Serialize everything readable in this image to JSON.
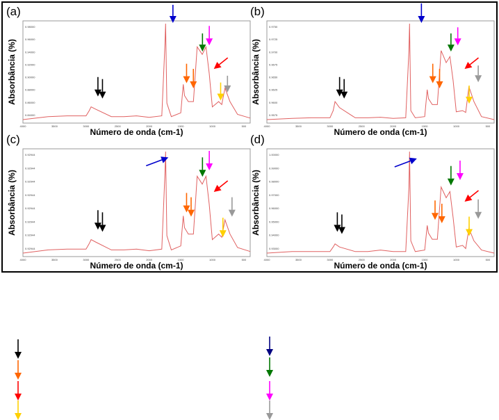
{
  "figure": {
    "axis_label_x": "Número de onda (cm-1)",
    "axis_label_y": "Absorbância (%)",
    "x_ticks": [
      "4000",
      "3500",
      "3000",
      "2500",
      "2000",
      "1500",
      "1000",
      "500"
    ],
    "panels": [
      {
        "label": "(a)",
        "y_ticks": [
          "0.98000",
          "0.96000",
          "0.94000",
          "0.92000",
          "0.90000",
          "0.88000",
          "0.86000",
          "0.84000"
        ]
      },
      {
        "label": "(b)",
        "y_ticks": [
          "0.9750",
          "0.9725",
          "0.9700",
          "0.9675",
          "0.9650",
          "0.9625",
          "0.9600",
          "0.9575"
        ]
      },
      {
        "label": "(c)",
        "y_ticks": [
          "0.92944",
          "0.92944",
          "0.92944",
          "0.92944",
          "0.92944",
          "0.92944",
          "0.92944",
          "0.92944"
        ]
      },
      {
        "label": "(d)",
        "y_ticks": [
          "1.00000",
          "0.99000",
          "0.98000",
          "0.97000",
          "0.96000",
          "0.95000",
          "0.94000",
          "0.93000"
        ]
      }
    ]
  },
  "colors": {
    "spectrum": "#e06060",
    "black": "#000000",
    "orange": "#ff6600",
    "red": "#ff0000",
    "yellow": "#ffd000",
    "blue": "#0000cc",
    "navy": "#000080",
    "green": "#007700",
    "magenta": "#ff00ff",
    "gray": "#999999"
  },
  "chart_data": [
    {
      "type": "line",
      "xlabel": "Número de onda (cm-1)",
      "ylabel": "Absorbância (%)",
      "xlim": [
        4000,
        400
      ],
      "grid": false,
      "x": [
        4000,
        3600,
        3300,
        3000,
        2950,
        2920,
        2850,
        2600,
        2400,
        2200,
        2000,
        1800,
        1750,
        1740,
        1720,
        1650,
        1500,
        1460,
        1440,
        1380,
        1300,
        1240,
        1160,
        1100,
        1050,
        1000,
        900,
        850,
        800,
        720,
        600,
        400
      ],
      "y": [
        0.848,
        0.852,
        0.853,
        0.853,
        0.86,
        0.865,
        0.862,
        0.852,
        0.852,
        0.853,
        0.851,
        0.853,
        0.95,
        0.976,
        0.87,
        0.852,
        0.857,
        0.895,
        0.88,
        0.872,
        0.872,
        0.945,
        0.935,
        0.945,
        0.91,
        0.865,
        0.872,
        0.868,
        0.89,
        0.872,
        0.855,
        0.85
      ]
    },
    {
      "type": "line",
      "xlabel": "Número de onda (cm-1)",
      "ylabel": "Absorbância (%)",
      "xlim": [
        4000,
        400
      ],
      "grid": false,
      "x": [
        4000,
        3600,
        3300,
        3000,
        2950,
        2920,
        2850,
        2600,
        2400,
        2200,
        2000,
        1800,
        1750,
        1740,
        1720,
        1650,
        1500,
        1460,
        1440,
        1380,
        1300,
        1240,
        1160,
        1100,
        1050,
        1000,
        900,
        850,
        800,
        720,
        600,
        400
      ],
      "y": [
        0.9585,
        0.9587,
        0.9588,
        0.9588,
        0.96,
        0.9615,
        0.9605,
        0.9588,
        0.9588,
        0.9589,
        0.9587,
        0.9588,
        0.97,
        0.9745,
        0.96,
        0.9588,
        0.959,
        0.9635,
        0.962,
        0.961,
        0.961,
        0.97,
        0.968,
        0.969,
        0.965,
        0.9598,
        0.96,
        0.9597,
        0.964,
        0.9615,
        0.959,
        0.9585
      ]
    },
    {
      "type": "line",
      "xlabel": "Número de onda (cm-1)",
      "ylabel": "Absorbância (%)",
      "xlim": [
        4000,
        400
      ],
      "grid": false,
      "x": [
        4000,
        3600,
        3300,
        3000,
        2950,
        2920,
        2850,
        2600,
        2400,
        2200,
        2000,
        1800,
        1750,
        1740,
        1720,
        1650,
        1500,
        1460,
        1440,
        1380,
        1300,
        1240,
        1160,
        1100,
        1050,
        1000,
        900,
        850,
        800,
        720,
        600,
        400
      ],
      "y": [
        0.92944,
        0.92944,
        0.92944,
        0.92944,
        0.92944,
        0.92944,
        0.92944,
        0.92944,
        0.92944,
        0.92944,
        0.92944,
        0.92944,
        0.92944,
        0.92944,
        0.92944,
        0.92944,
        0.92944,
        0.92944,
        0.92944,
        0.92944,
        0.92944,
        0.92944,
        0.92944,
        0.92944,
        0.92944,
        0.92944,
        0.92944,
        0.92944,
        0.92944,
        0.92944,
        0.92944,
        0.92944
      ]
    },
    {
      "type": "line",
      "xlabel": "Número de onda (cm-1)",
      "ylabel": "Absorbância (%)",
      "xlim": [
        4000,
        400
      ],
      "grid": false,
      "x": [
        4000,
        3600,
        3300,
        3000,
        2950,
        2920,
        2850,
        2600,
        2400,
        2200,
        2000,
        1800,
        1750,
        1740,
        1720,
        1650,
        1500,
        1460,
        1440,
        1380,
        1300,
        1240,
        1160,
        1100,
        1050,
        1000,
        900,
        850,
        800,
        720,
        600,
        400
      ],
      "y": [
        0.932,
        0.933,
        0.933,
        0.933,
        0.936,
        0.938,
        0.936,
        0.933,
        0.933,
        0.934,
        0.933,
        0.933,
        0.975,
        0.998,
        0.94,
        0.933,
        0.934,
        0.95,
        0.945,
        0.941,
        0.941,
        0.975,
        0.968,
        0.972,
        0.955,
        0.936,
        0.937,
        0.935,
        0.948,
        0.94,
        0.934,
        0.932
      ]
    }
  ]
}
